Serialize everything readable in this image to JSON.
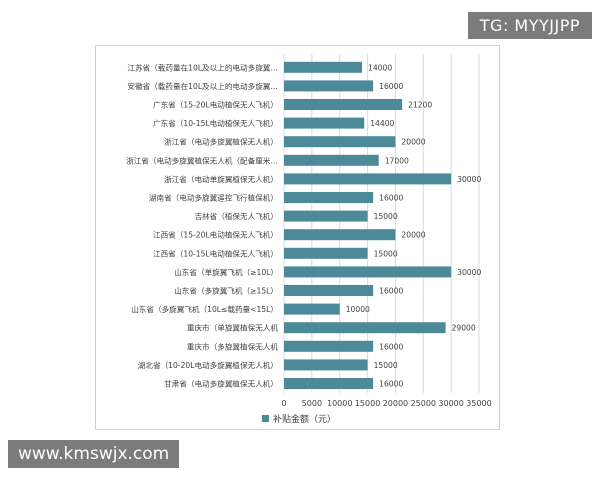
{
  "watermarks": {
    "top": "TG: MYYJJPP",
    "bottom": "www.kmswjx.com"
  },
  "colors": {
    "bar": "#4d8a99",
    "grid": "#d9d9d9",
    "text": "#404040"
  },
  "chart_data": {
    "type": "bar",
    "orientation": "horizontal",
    "categories": [
      "江苏省（载药量在10L及以上的电动多旋翼…",
      "安徽省（载药量在10L及以上的电动多旋翼…",
      "广东省（15-20L电动植保无人飞机）",
      "广东省（10-15L电动植保无人飞机）",
      "浙江省（电动多旋翼植保无人机）",
      "浙江省（电动多旋翼植保无人机（配备厘米…",
      "浙江省（电动单旋翼植保无人机）",
      "湖南省（电动多旋翼遥控飞行植保机）",
      "吉林省（植保无人飞机）",
      "江西省（15-20L电动植保无人飞机）",
      "江西省（10-15L电动植保无人飞机）",
      "山东省（单旋翼飞机（≥10L）",
      "山东省（多旋翼飞机（≥15L）",
      "山东省（多旋翼飞机（10L≤载药量<15L）",
      "重庆市（单旋翼植保无人机",
      "重庆市（多旋翼植保无人机",
      "湖北省（10-20L电动多旋翼植保无人机）",
      "甘肃省（电动多旋翼植保无人机）"
    ],
    "series": [
      {
        "name": "补贴金额（元）",
        "values": [
          14000,
          16000,
          21200,
          14400,
          20000,
          17000,
          30000,
          16000,
          15000,
          20000,
          15000,
          30000,
          16000,
          10000,
          29000,
          16000,
          15000,
          16000
        ]
      }
    ],
    "xlim": [
      0,
      35000
    ],
    "xticks": [
      0,
      5000,
      10000,
      15000,
      20000,
      25000,
      30000,
      35000
    ],
    "grid": true,
    "legend_position": "bottom"
  }
}
